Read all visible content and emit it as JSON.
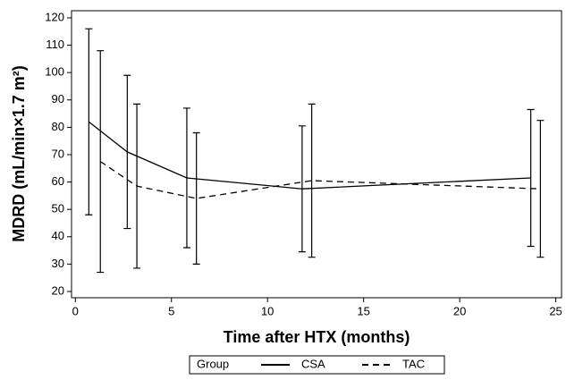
{
  "chart_data": {
    "type": "line",
    "xlabel": "Time after HTX (months)",
    "ylabel": "MDRD (mL/min×1.7 m²)",
    "xlim": [
      -0.2,
      25.3
    ],
    "xticks": [
      0,
      5,
      10,
      15,
      20,
      25
    ],
    "ylim": [
      17.7,
      122.6
    ],
    "yticks": [
      20,
      30,
      40,
      50,
      60,
      70,
      80,
      90,
      100,
      110,
      120
    ],
    "legend_title": "Group",
    "legend": "bottom",
    "series": [
      {
        "name": "CSA",
        "color": "#000000",
        "linestyle": "solid",
        "x": [
          0.7,
          2.7,
          5.8,
          11.8,
          23.7
        ],
        "values": [
          82,
          71,
          61.5,
          57.5,
          61.5
        ],
        "errors": [
          34,
          28,
          25.5,
          23,
          25
        ]
      },
      {
        "name": "TAC",
        "color": "#000000",
        "linestyle": "dashed",
        "x": [
          1.3,
          3.2,
          6.3,
          12.3,
          24.2
        ],
        "values": [
          67.5,
          58.5,
          54,
          60.5,
          57.5
        ],
        "errors": [
          40.5,
          30,
          24,
          28,
          25
        ]
      }
    ]
  }
}
